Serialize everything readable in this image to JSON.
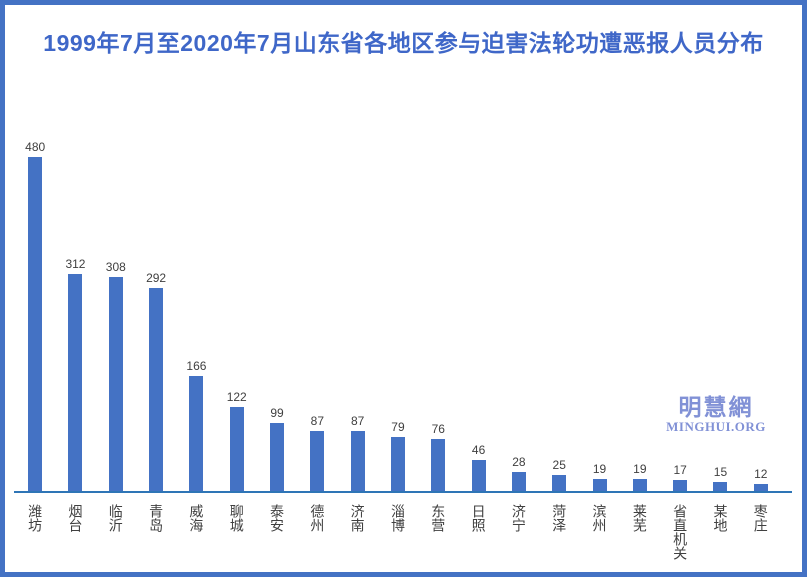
{
  "title": "1999年7月至2020年7月山东省各地区参与迫害法轮功遭恶报人员分布",
  "watermark": {
    "cn": "明慧網",
    "en": "MINGHUI.ORG"
  },
  "colors": {
    "frame_border": "#4472C4",
    "title_text": "#3F67C8",
    "bar_fill": "#4472C4",
    "axis_line": "#2E75B6",
    "data_label_text": "#404040",
    "category_label_text": "#404040",
    "watermark_text": "#8191D6",
    "background": "#FFFFFF"
  },
  "chart_data": {
    "type": "bar",
    "title": "1999年7月至2020年7月山东省各地区参与迫害法轮功遭恶报人员分布",
    "categories": [
      "潍坊",
      "烟台",
      "临沂",
      "青岛",
      "威海",
      "聊城",
      "泰安",
      "德州",
      "济南",
      "淄博",
      "东营",
      "日照",
      "济宁",
      "菏泽",
      "滨州",
      "莱芜",
      "省直机关",
      "某地",
      "枣庄"
    ],
    "values": [
      480,
      312,
      308,
      292,
      166,
      122,
      99,
      87,
      87,
      79,
      76,
      46,
      28,
      25,
      19,
      19,
      17,
      15,
      12
    ],
    "xlabel": "",
    "ylabel": "",
    "ylim": [
      0,
      500
    ],
    "grid": false,
    "legend": "none",
    "data_labels": true,
    "y_axis_visible": false,
    "x_axis_line": true
  }
}
